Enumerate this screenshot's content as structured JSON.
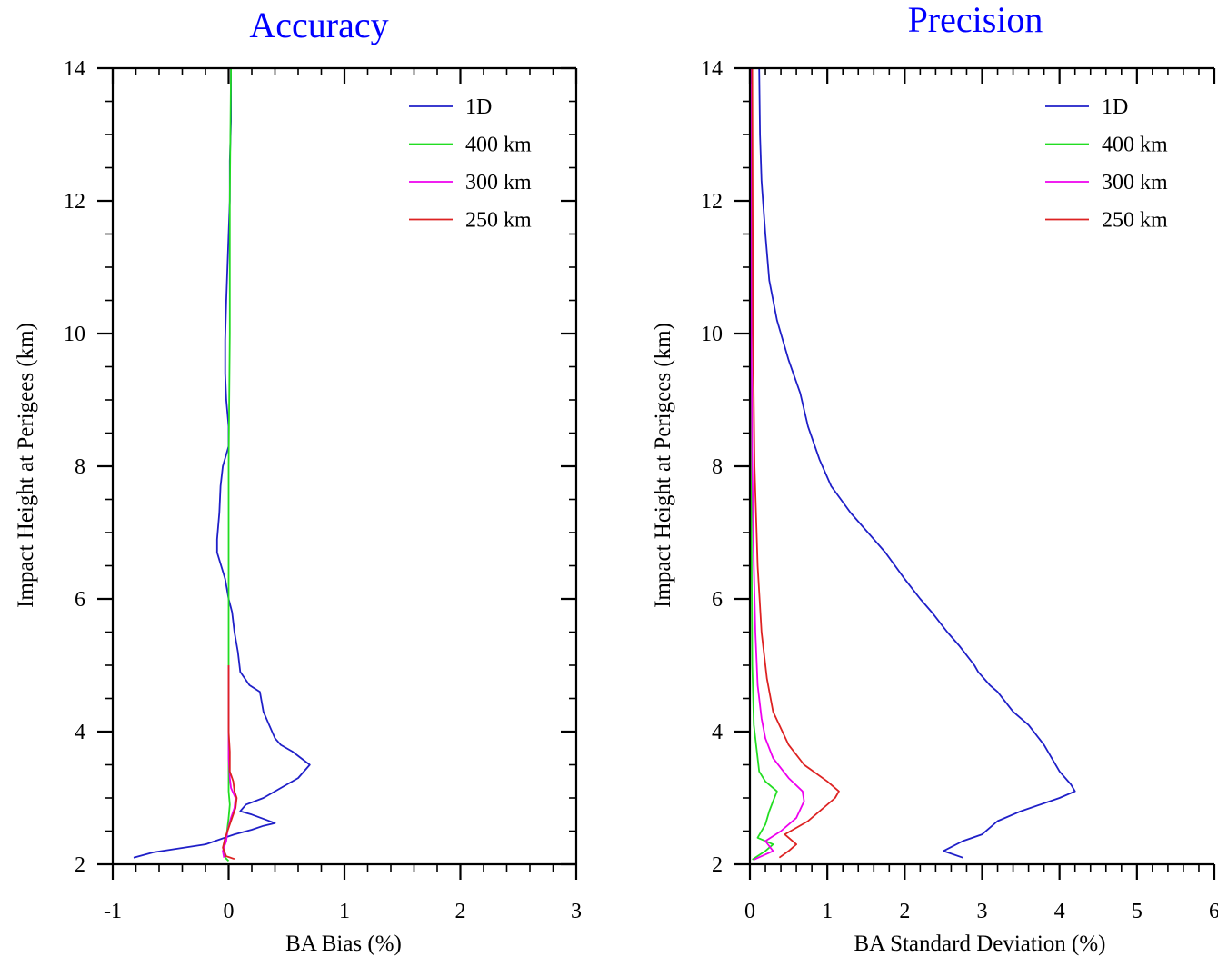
{
  "chart_data": [
    {
      "type": "line",
      "title": "Accuracy",
      "xlabel": "BA Bias (%)",
      "ylabel": "Impact Height at Perigees (km)",
      "xlim": [
        -1,
        3
      ],
      "ylim": [
        2,
        14
      ],
      "xticks": [
        "-1",
        "0",
        "1",
        "2",
        "3"
      ],
      "yticks": [
        "2",
        "4",
        "6",
        "8",
        "10",
        "12",
        "14"
      ],
      "legend_position": "top-right",
      "title_color": "#0000ff",
      "series": [
        {
          "name": "1D",
          "color": "#1f1fc8",
          "points": [
            [
              -0.82,
              2.1
            ],
            [
              -0.65,
              2.18
            ],
            [
              -0.2,
              2.3
            ],
            [
              0.05,
              2.45
            ],
            [
              0.2,
              2.52
            ],
            [
              0.3,
              2.58
            ],
            [
              0.4,
              2.62
            ],
            [
              0.2,
              2.75
            ],
            [
              0.1,
              2.8
            ],
            [
              0.15,
              2.9
            ],
            [
              0.3,
              3.0
            ],
            [
              0.5,
              3.2
            ],
            [
              0.6,
              3.3
            ],
            [
              0.7,
              3.5
            ],
            [
              0.55,
              3.7
            ],
            [
              0.45,
              3.8
            ],
            [
              0.4,
              3.9
            ],
            [
              0.35,
              4.1
            ],
            [
              0.3,
              4.3
            ],
            [
              0.27,
              4.6
            ],
            [
              0.18,
              4.7
            ],
            [
              0.1,
              4.9
            ],
            [
              0.08,
              5.2
            ],
            [
              0.05,
              5.5
            ],
            [
              0.03,
              5.8
            ],
            [
              0.0,
              6.0
            ],
            [
              -0.03,
              6.3
            ],
            [
              -0.1,
              6.7
            ],
            [
              -0.1,
              6.9
            ],
            [
              -0.08,
              7.3
            ],
            [
              -0.07,
              7.7
            ],
            [
              -0.05,
              8.0
            ],
            [
              0.0,
              8.3
            ],
            [
              0.0,
              8.6
            ],
            [
              -0.02,
              9.0
            ],
            [
              -0.03,
              9.4
            ],
            [
              -0.03,
              9.9
            ],
            [
              -0.02,
              10.5
            ],
            [
              -0.01,
              11.0
            ],
            [
              0.0,
              11.5
            ],
            [
              0.01,
              12.0
            ],
            [
              0.01,
              12.6
            ],
            [
              0.02,
              13.2
            ],
            [
              0.02,
              14.0
            ]
          ]
        },
        {
          "name": "400 km",
          "color": "#22dd22",
          "points": [
            [
              0.0,
              2.05
            ],
            [
              -0.03,
              2.1
            ],
            [
              -0.04,
              2.25
            ],
            [
              -0.02,
              2.4
            ],
            [
              -0.01,
              2.55
            ],
            [
              0.0,
              2.7
            ],
            [
              0.01,
              2.9
            ],
            [
              0.0,
              3.1
            ],
            [
              0.0,
              3.5
            ],
            [
              0.0,
              4.0
            ],
            [
              0.0,
              6.0
            ],
            [
              0.0,
              8.0
            ],
            [
              0.01,
              10.0
            ],
            [
              0.01,
              12.0
            ],
            [
              0.02,
              14.0
            ]
          ]
        },
        {
          "name": "300 km",
          "color": "#ee00ee",
          "points": [
            [
              -0.04,
              2.1
            ],
            [
              -0.05,
              2.2
            ],
            [
              -0.02,
              2.35
            ],
            [
              -0.01,
              2.5
            ],
            [
              0.02,
              2.7
            ],
            [
              0.05,
              2.85
            ],
            [
              0.06,
              3.0
            ],
            [
              0.02,
              3.15
            ],
            [
              0.01,
              3.3
            ],
            [
              0.0,
              3.6
            ],
            [
              0.0,
              4.0
            ],
            [
              0.0,
              5.0
            ]
          ]
        },
        {
          "name": "250 km",
          "color": "#dd2222",
          "points": [
            [
              0.05,
              2.08
            ],
            [
              -0.02,
              2.12
            ],
            [
              -0.05,
              2.25
            ],
            [
              -0.03,
              2.4
            ],
            [
              0.0,
              2.55
            ],
            [
              0.03,
              2.7
            ],
            [
              0.06,
              2.85
            ],
            [
              0.07,
              3.0
            ],
            [
              0.05,
              3.1
            ],
            [
              0.04,
              3.25
            ],
            [
              0.01,
              3.4
            ],
            [
              0.01,
              3.7
            ],
            [
              0.0,
              4.0
            ],
            [
              0.0,
              5.0
            ]
          ]
        }
      ]
    },
    {
      "type": "line",
      "title": "Precision",
      "xlabel": "BA Standard Deviation (%)",
      "ylabel": "Impact Height at Perigees (km)",
      "xlim": [
        0,
        6
      ],
      "ylim": [
        2,
        14
      ],
      "xticks": [
        "0",
        "1",
        "2",
        "3",
        "4",
        "5",
        "6"
      ],
      "yticks": [
        "2",
        "4",
        "6",
        "8",
        "10",
        "12",
        "14"
      ],
      "legend_position": "top-right",
      "title_color": "#0000ff",
      "series": [
        {
          "name": "1D",
          "color": "#1f1fc8",
          "points": [
            [
              2.75,
              2.1
            ],
            [
              2.5,
              2.2
            ],
            [
              2.75,
              2.35
            ],
            [
              3.0,
              2.45
            ],
            [
              3.2,
              2.65
            ],
            [
              3.5,
              2.8
            ],
            [
              4.0,
              3.0
            ],
            [
              4.2,
              3.1
            ],
            [
              4.15,
              3.2
            ],
            [
              4.0,
              3.4
            ],
            [
              3.85,
              3.7
            ],
            [
              3.8,
              3.8
            ],
            [
              3.6,
              4.1
            ],
            [
              3.4,
              4.3
            ],
            [
              3.2,
              4.6
            ],
            [
              3.1,
              4.7
            ],
            [
              2.95,
              4.9
            ],
            [
              2.9,
              5.0
            ],
            [
              2.7,
              5.3
            ],
            [
              2.55,
              5.5
            ],
            [
              2.35,
              5.8
            ],
            [
              2.2,
              6.0
            ],
            [
              2.0,
              6.3
            ],
            [
              1.75,
              6.7
            ],
            [
              1.6,
              6.9
            ],
            [
              1.3,
              7.3
            ],
            [
              1.05,
              7.7
            ],
            [
              0.9,
              8.1
            ],
            [
              0.75,
              8.6
            ],
            [
              0.65,
              9.1
            ],
            [
              0.5,
              9.6
            ],
            [
              0.35,
              10.2
            ],
            [
              0.25,
              10.8
            ],
            [
              0.2,
              11.5
            ],
            [
              0.15,
              12.3
            ],
            [
              0.13,
              13.0
            ],
            [
              0.12,
              14.0
            ]
          ]
        },
        {
          "name": "400 km",
          "color": "#22dd22",
          "points": [
            [
              0.03,
              2.07
            ],
            [
              0.2,
              2.2
            ],
            [
              0.3,
              2.3
            ],
            [
              0.1,
              2.4
            ],
            [
              0.2,
              2.6
            ],
            [
              0.25,
              2.8
            ],
            [
              0.3,
              2.95
            ],
            [
              0.35,
              3.1
            ],
            [
              0.2,
              3.25
            ],
            [
              0.12,
              3.4
            ],
            [
              0.08,
              3.8
            ],
            [
              0.05,
              4.1
            ],
            [
              0.03,
              5.0
            ],
            [
              0.02,
              7.0
            ],
            [
              0.02,
              10.0
            ],
            [
              0.02,
              14.0
            ]
          ]
        },
        {
          "name": "300 km",
          "color": "#ee00ee",
          "points": [
            [
              0.05,
              2.07
            ],
            [
              0.3,
              2.2
            ],
            [
              0.2,
              2.35
            ],
            [
              0.4,
              2.5
            ],
            [
              0.6,
              2.7
            ],
            [
              0.7,
              2.95
            ],
            [
              0.68,
              3.1
            ],
            [
              0.5,
              3.3
            ],
            [
              0.3,
              3.6
            ],
            [
              0.2,
              3.9
            ],
            [
              0.15,
              4.2
            ],
            [
              0.1,
              4.7
            ],
            [
              0.07,
              5.5
            ],
            [
              0.05,
              6.5
            ],
            [
              0.03,
              8.0
            ],
            [
              0.02,
              10.0
            ],
            [
              0.02,
              14.0
            ]
          ]
        },
        {
          "name": "250 km",
          "color": "#dd2222",
          "points": [
            [
              0.38,
              2.1
            ],
            [
              0.5,
              2.2
            ],
            [
              0.6,
              2.3
            ],
            [
              0.45,
              2.45
            ],
            [
              0.6,
              2.55
            ],
            [
              0.75,
              2.65
            ],
            [
              0.95,
              2.85
            ],
            [
              1.1,
              3.0
            ],
            [
              1.15,
              3.1
            ],
            [
              1.0,
              3.25
            ],
            [
              0.7,
              3.5
            ],
            [
              0.5,
              3.8
            ],
            [
              0.3,
              4.3
            ],
            [
              0.22,
              4.8
            ],
            [
              0.15,
              5.5
            ],
            [
              0.1,
              6.5
            ],
            [
              0.06,
              8.0
            ],
            [
              0.04,
              10.0
            ],
            [
              0.03,
              14.0
            ]
          ]
        }
      ]
    }
  ]
}
